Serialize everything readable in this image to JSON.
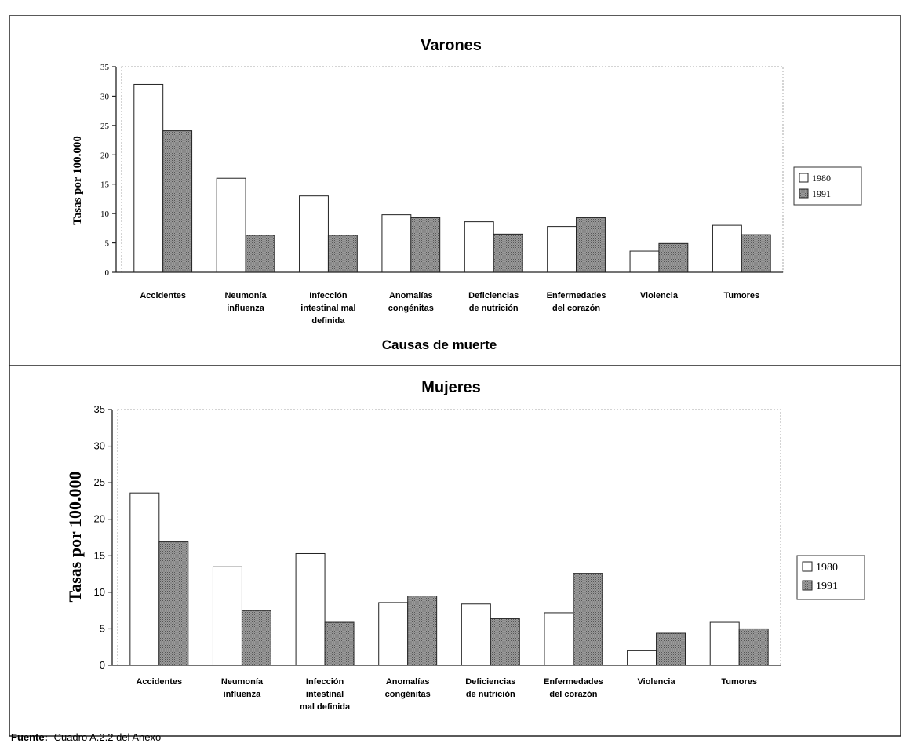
{
  "chart_data": [
    {
      "type": "bar",
      "title": "Varones",
      "xlabel": "Causas de muerte",
      "ylabel": "Tasas por 100.000",
      "ylim": [
        0,
        35
      ],
      "yticks": [
        0,
        5,
        10,
        15,
        20,
        25,
        30,
        35
      ],
      "grid": false,
      "legend_position": "right",
      "categories": [
        [
          "Accidentes"
        ],
        [
          "Neumonía",
          "influenza"
        ],
        [
          "Infección",
          "intestinal mal",
          "definida"
        ],
        [
          "Anomalías",
          "congénitas"
        ],
        [
          "Deficiencias",
          "de nutrición"
        ],
        [
          "Enfermedades",
          "del corazón"
        ],
        [
          "Violencia"
        ],
        [
          "Tumores"
        ]
      ],
      "series": [
        {
          "name": "1980",
          "color": "#ffffff",
          "values": [
            32.0,
            16.0,
            13.0,
            9.8,
            8.6,
            7.8,
            3.6,
            8.0
          ]
        },
        {
          "name": "1991",
          "color": "#8f8f8f",
          "values": [
            24.1,
            6.3,
            6.3,
            9.3,
            6.5,
            9.3,
            4.9,
            6.4
          ]
        }
      ]
    },
    {
      "type": "bar",
      "title": "Mujeres",
      "xlabel": "",
      "ylabel": "Tasas por 100.000",
      "ylim": [
        0,
        35
      ],
      "yticks": [
        0,
        5,
        10,
        15,
        20,
        25,
        30,
        35
      ],
      "grid": false,
      "legend_position": "right",
      "categories": [
        [
          "Accidentes"
        ],
        [
          "Neumonía",
          "influenza"
        ],
        [
          "Infección",
          "intestinal",
          "mal definida"
        ],
        [
          "Anomalías",
          "congénitas"
        ],
        [
          "Deficiencias",
          "de nutrición"
        ],
        [
          "Enfermedades",
          "del corazón"
        ],
        [
          "Violencia"
        ],
        [
          "Tumores"
        ]
      ],
      "series": [
        {
          "name": "1980",
          "color": "#ffffff",
          "values": [
            23.6,
            13.5,
            15.3,
            8.6,
            8.4,
            7.2,
            2.0,
            5.9
          ]
        },
        {
          "name": "1991",
          "color": "#8f8f8f",
          "values": [
            16.9,
            7.5,
            5.9,
            9.5,
            6.4,
            12.6,
            4.4,
            5.0
          ]
        }
      ]
    }
  ],
  "footer": {
    "label": "Fuente:",
    "text": "Cuadro A.2.2 del Anexo"
  }
}
